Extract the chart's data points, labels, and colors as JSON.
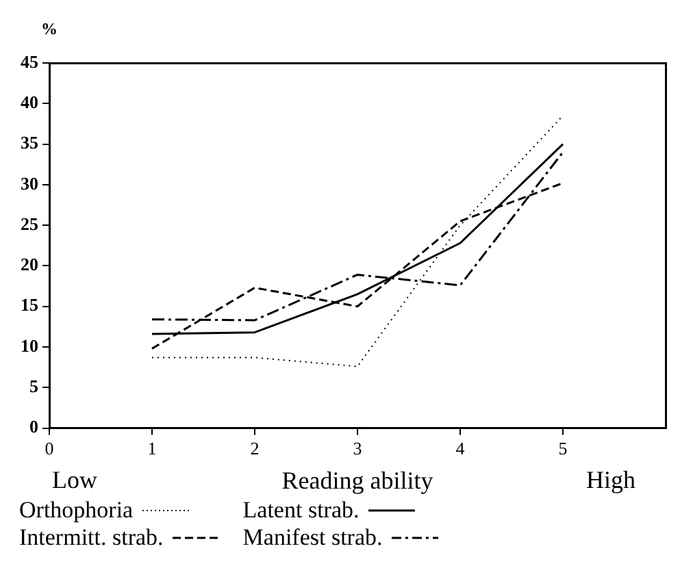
{
  "chart_data": {
    "type": "line",
    "ylabel": "%",
    "xlabel": "Reading ability",
    "annotations": [
      "Low",
      "High"
    ],
    "x": [
      1,
      2,
      3,
      4,
      5
    ],
    "xlim": [
      0,
      6
    ],
    "xticks": [
      0,
      1,
      2,
      3,
      4,
      5
    ],
    "ylim": [
      0,
      45
    ],
    "yticks": [
      0,
      5,
      10,
      15,
      20,
      25,
      30,
      35,
      40,
      45
    ],
    "grid": false,
    "legend": "bottom",
    "marker": "none",
    "series": [
      {
        "name": "Orthophoria",
        "color": "#000000",
        "line_style": "dotted",
        "values": [
          8.7,
          8.7,
          7.6,
          25,
          38.5
        ]
      },
      {
        "name": "Latent strab.",
        "color": "#000000",
        "line_style": "solid",
        "values": [
          11.6,
          11.8,
          16.5,
          22.8,
          35
        ]
      },
      {
        "name": "Intermitt. strab.",
        "color": "#000000",
        "line_style": "dashed",
        "values": [
          9.8,
          17.3,
          15,
          25.5,
          30.2
        ]
      },
      {
        "name": "Manifest strab.",
        "color": "#000000",
        "line_style": "dashdot",
        "values": [
          13.4,
          13.3,
          18.9,
          17.6,
          34
        ]
      }
    ]
  }
}
